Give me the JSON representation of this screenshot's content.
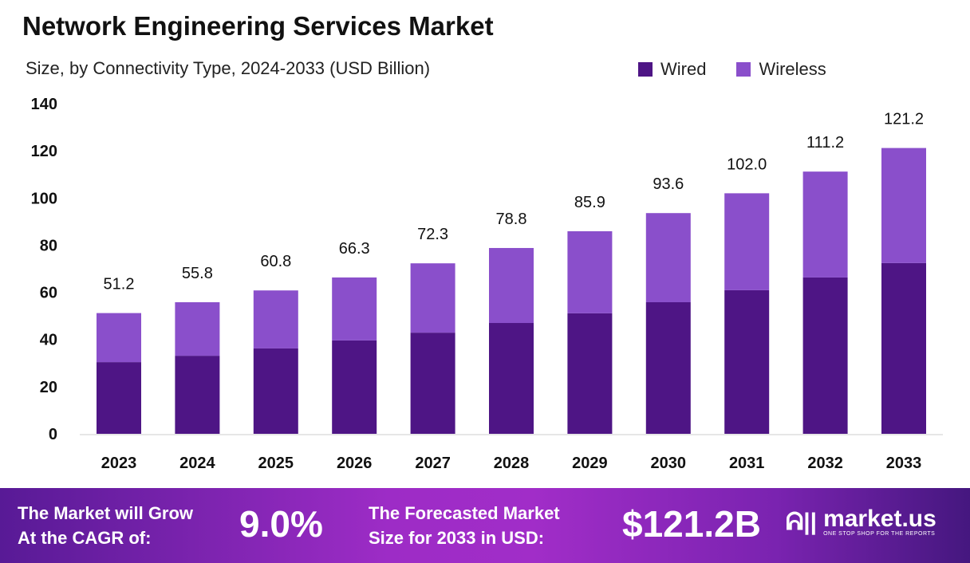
{
  "chart_data": {
    "type": "bar",
    "stacked": true,
    "title": "Network Engineering Services Market",
    "subtitle": "Size, by Connectivity  Type, 2024-2033 (USD Billion)",
    "categories": [
      "2023",
      "2024",
      "2025",
      "2026",
      "2027",
      "2028",
      "2029",
      "2030",
      "2031",
      "2032",
      "2033"
    ],
    "series": [
      {
        "name": "Wired",
        "color": "#4e1585",
        "values": [
          30.4,
          33.1,
          36.2,
          39.6,
          42.9,
          47.0,
          51.1,
          55.8,
          60.9,
          66.3,
          72.4
        ]
      },
      {
        "name": "Wireless",
        "color": "#8a4fcb",
        "values": [
          20.8,
          22.7,
          24.6,
          26.7,
          29.4,
          31.8,
          34.8,
          37.8,
          41.1,
          44.9,
          48.8
        ]
      }
    ],
    "totals": [
      "51.2",
      "55.8",
      "60.8",
      "66.3",
      "72.3",
      "78.8",
      "85.9",
      "93.6",
      "102.0",
      "111.2",
      "121.2"
    ],
    "ylim": [
      0,
      140
    ],
    "yticks": [
      "0",
      "20",
      "40",
      "60",
      "80",
      "100",
      "120",
      "140"
    ],
    "grid": false,
    "legend_position": "top-right"
  },
  "footer": {
    "cagr_label_1": "The Market will Grow",
    "cagr_label_2": "At the CAGR of:",
    "cagr_value": "9.0%",
    "forecast_label_1": "The Forecasted Market",
    "forecast_label_2": "Size for 2033 in USD:",
    "forecast_value": "$121.2B",
    "logo_name": "market.us",
    "logo_tagline": "ONE STOP SHOP FOR THE REPORTS"
  }
}
